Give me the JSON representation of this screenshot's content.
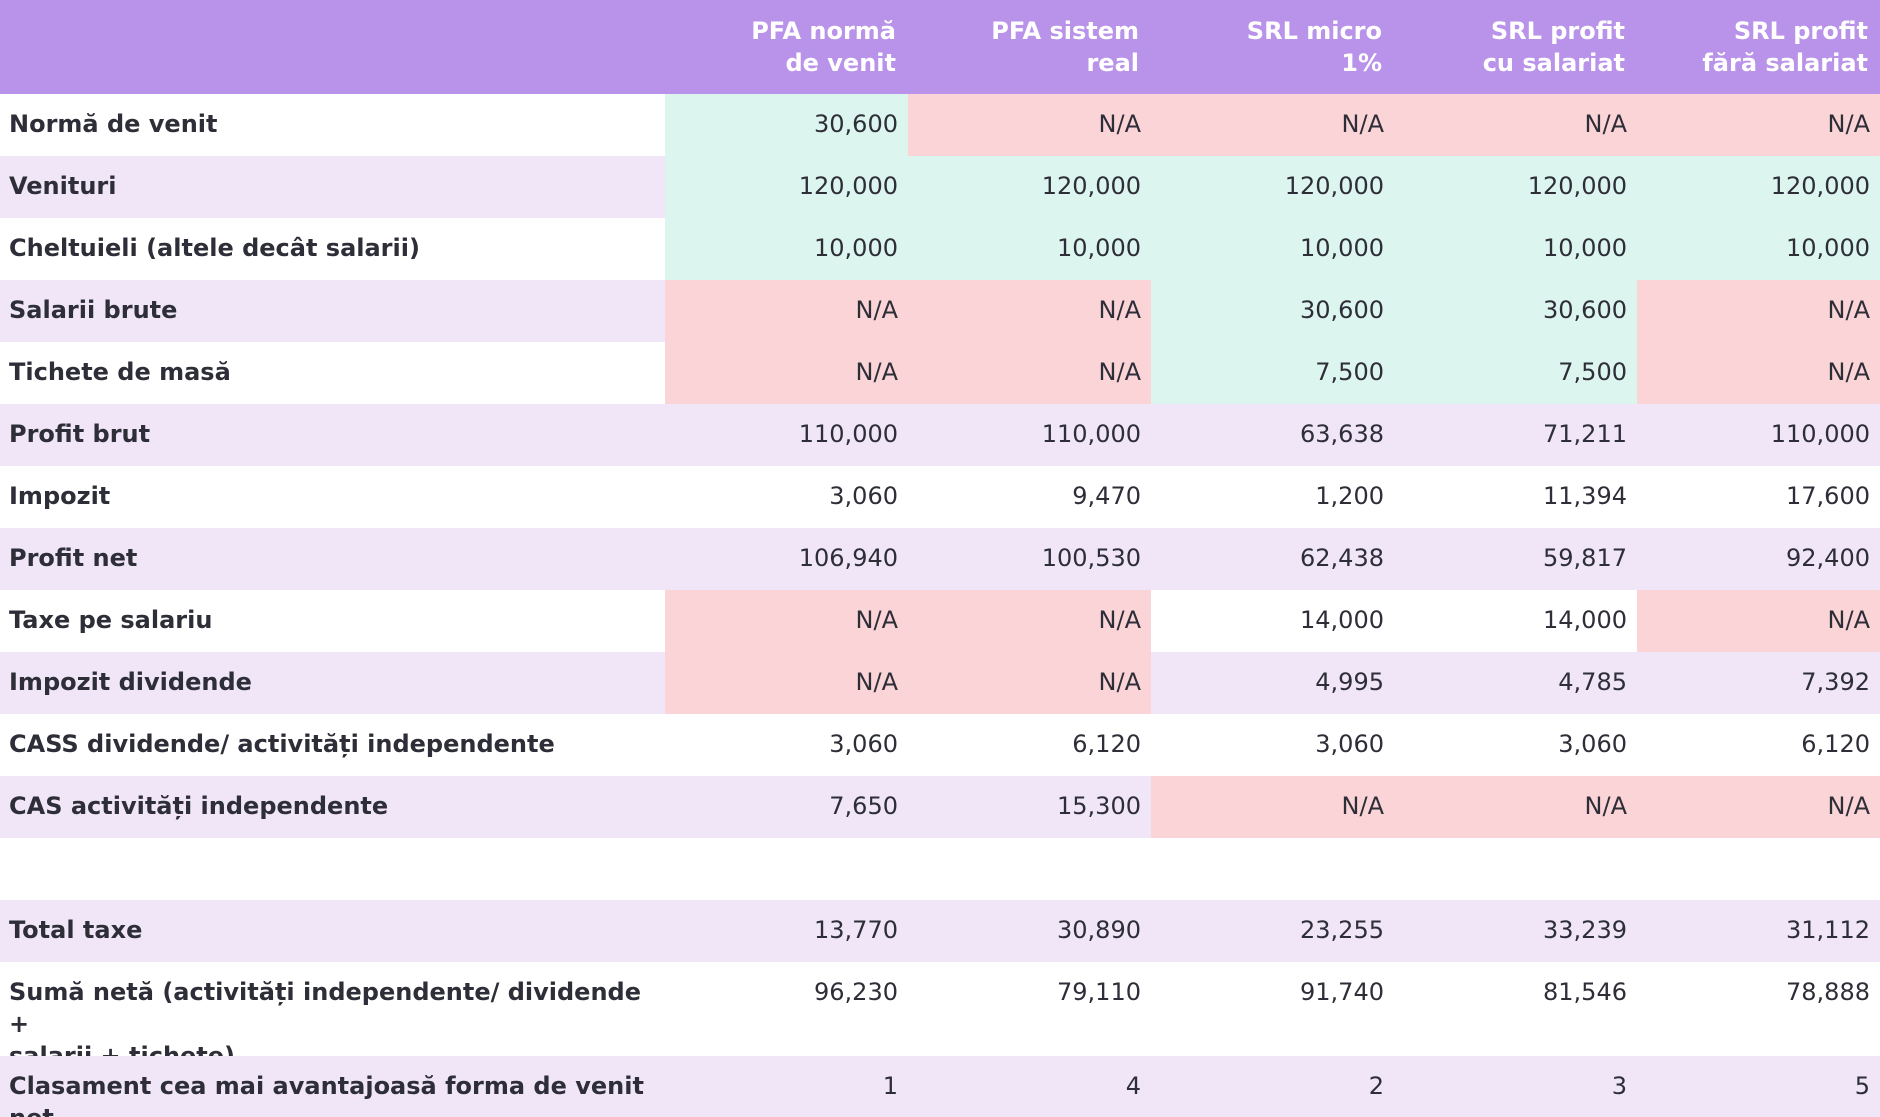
{
  "colors": {
    "header": "#b993e9",
    "row_alt": "#f0e6f8",
    "applicable": "#dcf5ee",
    "not_applicable": "#fad4d6"
  },
  "headers": [
    "",
    "PFA normă\nde venit",
    "PFA sistem\nreal",
    "SRL micro\n1%",
    "SRL profit\ncu salariat",
    "SRL profit\nfără salariat"
  ],
  "rows": [
    {
      "label": "Normă de venit",
      "bg": "white",
      "values": [
        "30,600",
        "N/A",
        "N/A",
        "N/A",
        "N/A"
      ],
      "status": [
        "green",
        "red",
        "red",
        "red",
        "red"
      ]
    },
    {
      "label": "Venituri",
      "bg": "lav",
      "values": [
        "120,000",
        "120,000",
        "120,000",
        "120,000",
        "120,000"
      ],
      "status": [
        "green",
        "green",
        "green",
        "green",
        "green"
      ]
    },
    {
      "label": "Cheltuieli (altele decât salarii)",
      "bg": "white",
      "values": [
        "10,000",
        "10,000",
        "10,000",
        "10,000",
        "10,000"
      ],
      "status": [
        "green",
        "green",
        "green",
        "green",
        "green"
      ]
    },
    {
      "label": "Salarii brute",
      "bg": "lav",
      "values": [
        "N/A",
        "N/A",
        "30,600",
        "30,600",
        "N/A"
      ],
      "status": [
        "red",
        "red",
        "green",
        "green",
        "red"
      ]
    },
    {
      "label": "Tichete de masă",
      "bg": "white",
      "values": [
        "N/A",
        "N/A",
        "7,500",
        "7,500",
        "N/A"
      ],
      "status": [
        "red",
        "red",
        "green",
        "green",
        "red"
      ]
    },
    {
      "label": "Profit brut",
      "bg": "lav",
      "values": [
        "110,000",
        "110,000",
        "63,638",
        "71,211",
        "110,000"
      ],
      "status": [
        "",
        "",
        "",
        "",
        ""
      ]
    },
    {
      "label": "Impozit",
      "bg": "white",
      "values": [
        "3,060",
        "9,470",
        "1,200",
        "11,394",
        "17,600"
      ],
      "status": [
        "",
        "",
        "",
        "",
        ""
      ]
    },
    {
      "label": "Profit net",
      "bg": "lav",
      "values": [
        "106,940",
        "100,530",
        "62,438",
        "59,817",
        "92,400"
      ],
      "status": [
        "",
        "",
        "",
        "",
        ""
      ]
    },
    {
      "label": "Taxe pe salariu",
      "bg": "white",
      "values": [
        "N/A",
        "N/A",
        "14,000",
        "14,000",
        "N/A"
      ],
      "status": [
        "red",
        "red",
        "",
        "",
        "red"
      ]
    },
    {
      "label": "Impozit dividende",
      "bg": "lav",
      "values": [
        "N/A",
        "N/A",
        "4,995",
        "4,785",
        "7,392"
      ],
      "status": [
        "red",
        "red",
        "",
        "",
        ""
      ]
    },
    {
      "label": "CASS dividende/ activități independente",
      "bg": "white",
      "values": [
        "3,060",
        "6,120",
        "3,060",
        "3,060",
        "6,120"
      ],
      "status": [
        "",
        "",
        "",
        "",
        ""
      ]
    },
    {
      "label": "CAS activități independente",
      "bg": "lav",
      "values": [
        "7,650",
        "15,300",
        "N/A",
        "N/A",
        "N/A"
      ],
      "status": [
        "",
        "",
        "red",
        "red",
        "red"
      ]
    },
    {
      "label": "",
      "bg": "white",
      "values": [
        "",
        "",
        "",
        "",
        ""
      ],
      "status": [
        "",
        "",
        "",
        "",
        ""
      ]
    },
    {
      "label": "Total taxe",
      "bg": "lav",
      "values": [
        "13,770",
        "30,890",
        "23,255",
        "33,239",
        "31,112"
      ],
      "status": [
        "",
        "",
        "",
        "",
        ""
      ]
    },
    {
      "label": "Sumă netă (activități independente/ dividende +\nsalarii + tichete)",
      "bg": "white",
      "values": [
        "96,230",
        "79,110",
        "91,740",
        "81,546",
        "78,888"
      ],
      "status": [
        "",
        "",
        "",
        "",
        ""
      ]
    },
    {
      "label": "Clasament cea mai avantajoasă forma de venit net",
      "bg": "lav",
      "values": [
        "1",
        "4",
        "2",
        "3",
        "5"
      ],
      "status": [
        "",
        "",
        "",
        "",
        ""
      ]
    }
  ]
}
